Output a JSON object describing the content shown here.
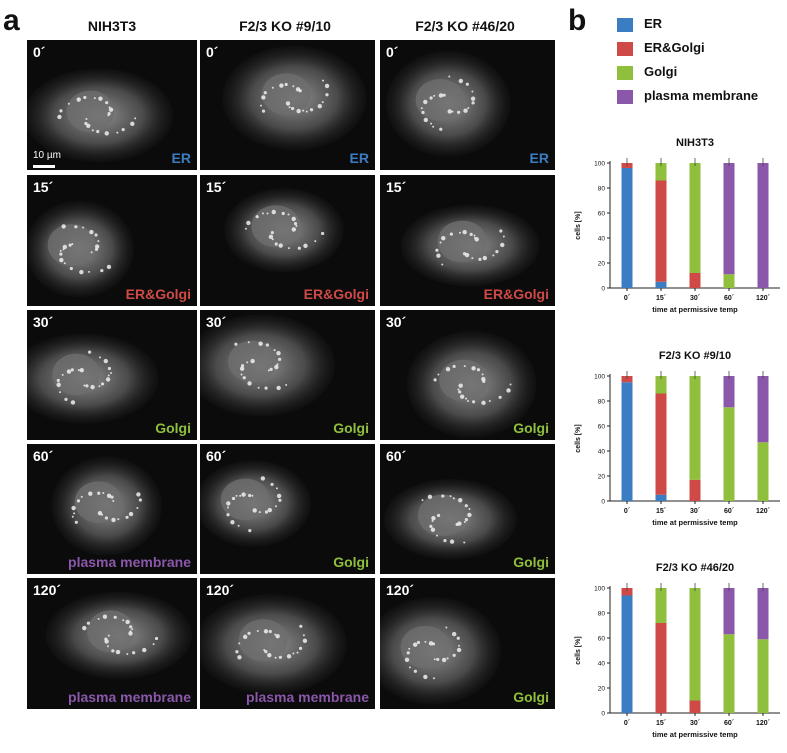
{
  "panels": {
    "a": "a",
    "b": "b"
  },
  "columns": [
    "NIH3T3",
    "F2/3 KO #9/10",
    "F2/3 KO #46/20"
  ],
  "scale_bar": "10 µm",
  "colors": {
    "ER": "#3a7dc2",
    "ER&Golgi": "#cf4a46",
    "Golgi": "#8fbf3d",
    "plasma membrane": "#8a57aa"
  },
  "rows": [
    {
      "time": "0´",
      "labels": [
        "ER",
        "ER",
        "ER"
      ]
    },
    {
      "time": "15´",
      "labels": [
        "ER&Golgi",
        "ER&Golgi",
        "ER&Golgi"
      ]
    },
    {
      "time": "30´",
      "labels": [
        "Golgi",
        "Golgi",
        "Golgi"
      ]
    },
    {
      "time": "60´",
      "labels": [
        "plasma membrane",
        "Golgi",
        "Golgi"
      ]
    },
    {
      "time": "120´",
      "labels": [
        "plasma membrane",
        "plasma membrane",
        "Golgi"
      ]
    }
  ],
  "legend": [
    "ER",
    "ER&Golgi",
    "Golgi",
    "plasma membrane"
  ],
  "chart_data": [
    {
      "type": "bar",
      "stacked": true,
      "title": "NIH3T3",
      "xlabel": "time at permissive temp",
      "ylabel": "cells [%]",
      "ylim": [
        0,
        100
      ],
      "yticks": [
        0,
        20,
        40,
        60,
        80,
        100
      ],
      "categories": [
        "0´",
        "15´",
        "30´",
        "60´",
        "120´"
      ],
      "series": [
        {
          "name": "ER",
          "values": [
            96,
            5,
            0,
            0,
            0
          ]
        },
        {
          "name": "ER&Golgi",
          "values": [
            4,
            81,
            12,
            0,
            0
          ]
        },
        {
          "name": "Golgi",
          "values": [
            0,
            14,
            88,
            11,
            0
          ]
        },
        {
          "name": "plasma membrane",
          "values": [
            0,
            0,
            0,
            89,
            100
          ]
        }
      ]
    },
    {
      "type": "bar",
      "stacked": true,
      "title": "F2/3 KO #9/10",
      "xlabel": "time at permissive temp",
      "ylabel": "cells [%]",
      "ylim": [
        0,
        100
      ],
      "yticks": [
        0,
        20,
        40,
        60,
        80,
        100
      ],
      "categories": [
        "0´",
        "15´",
        "30´",
        "60´",
        "120´"
      ],
      "series": [
        {
          "name": "ER",
          "values": [
            95,
            5,
            0,
            0,
            0
          ]
        },
        {
          "name": "ER&Golgi",
          "values": [
            5,
            81,
            17,
            0,
            0
          ]
        },
        {
          "name": "Golgi",
          "values": [
            0,
            14,
            83,
            75,
            47
          ]
        },
        {
          "name": "plasma membrane",
          "values": [
            0,
            0,
            0,
            25,
            53
          ]
        }
      ]
    },
    {
      "type": "bar",
      "stacked": true,
      "title": "F2/3 KO #46/20",
      "xlabel": "time at permissive temp",
      "ylabel": "cells [%]",
      "ylim": [
        0,
        100
      ],
      "yticks": [
        0,
        20,
        40,
        60,
        80,
        100
      ],
      "categories": [
        "0´",
        "15´",
        "30´",
        "60´",
        "120´"
      ],
      "series": [
        {
          "name": "ER",
          "values": [
            94,
            0,
            0,
            0,
            0
          ]
        },
        {
          "name": "ER&Golgi",
          "values": [
            6,
            72,
            10,
            0,
            0
          ]
        },
        {
          "name": "Golgi",
          "values": [
            0,
            28,
            90,
            63,
            59
          ]
        },
        {
          "name": "plasma membrane",
          "values": [
            0,
            0,
            0,
            37,
            41
          ]
        }
      ]
    }
  ]
}
